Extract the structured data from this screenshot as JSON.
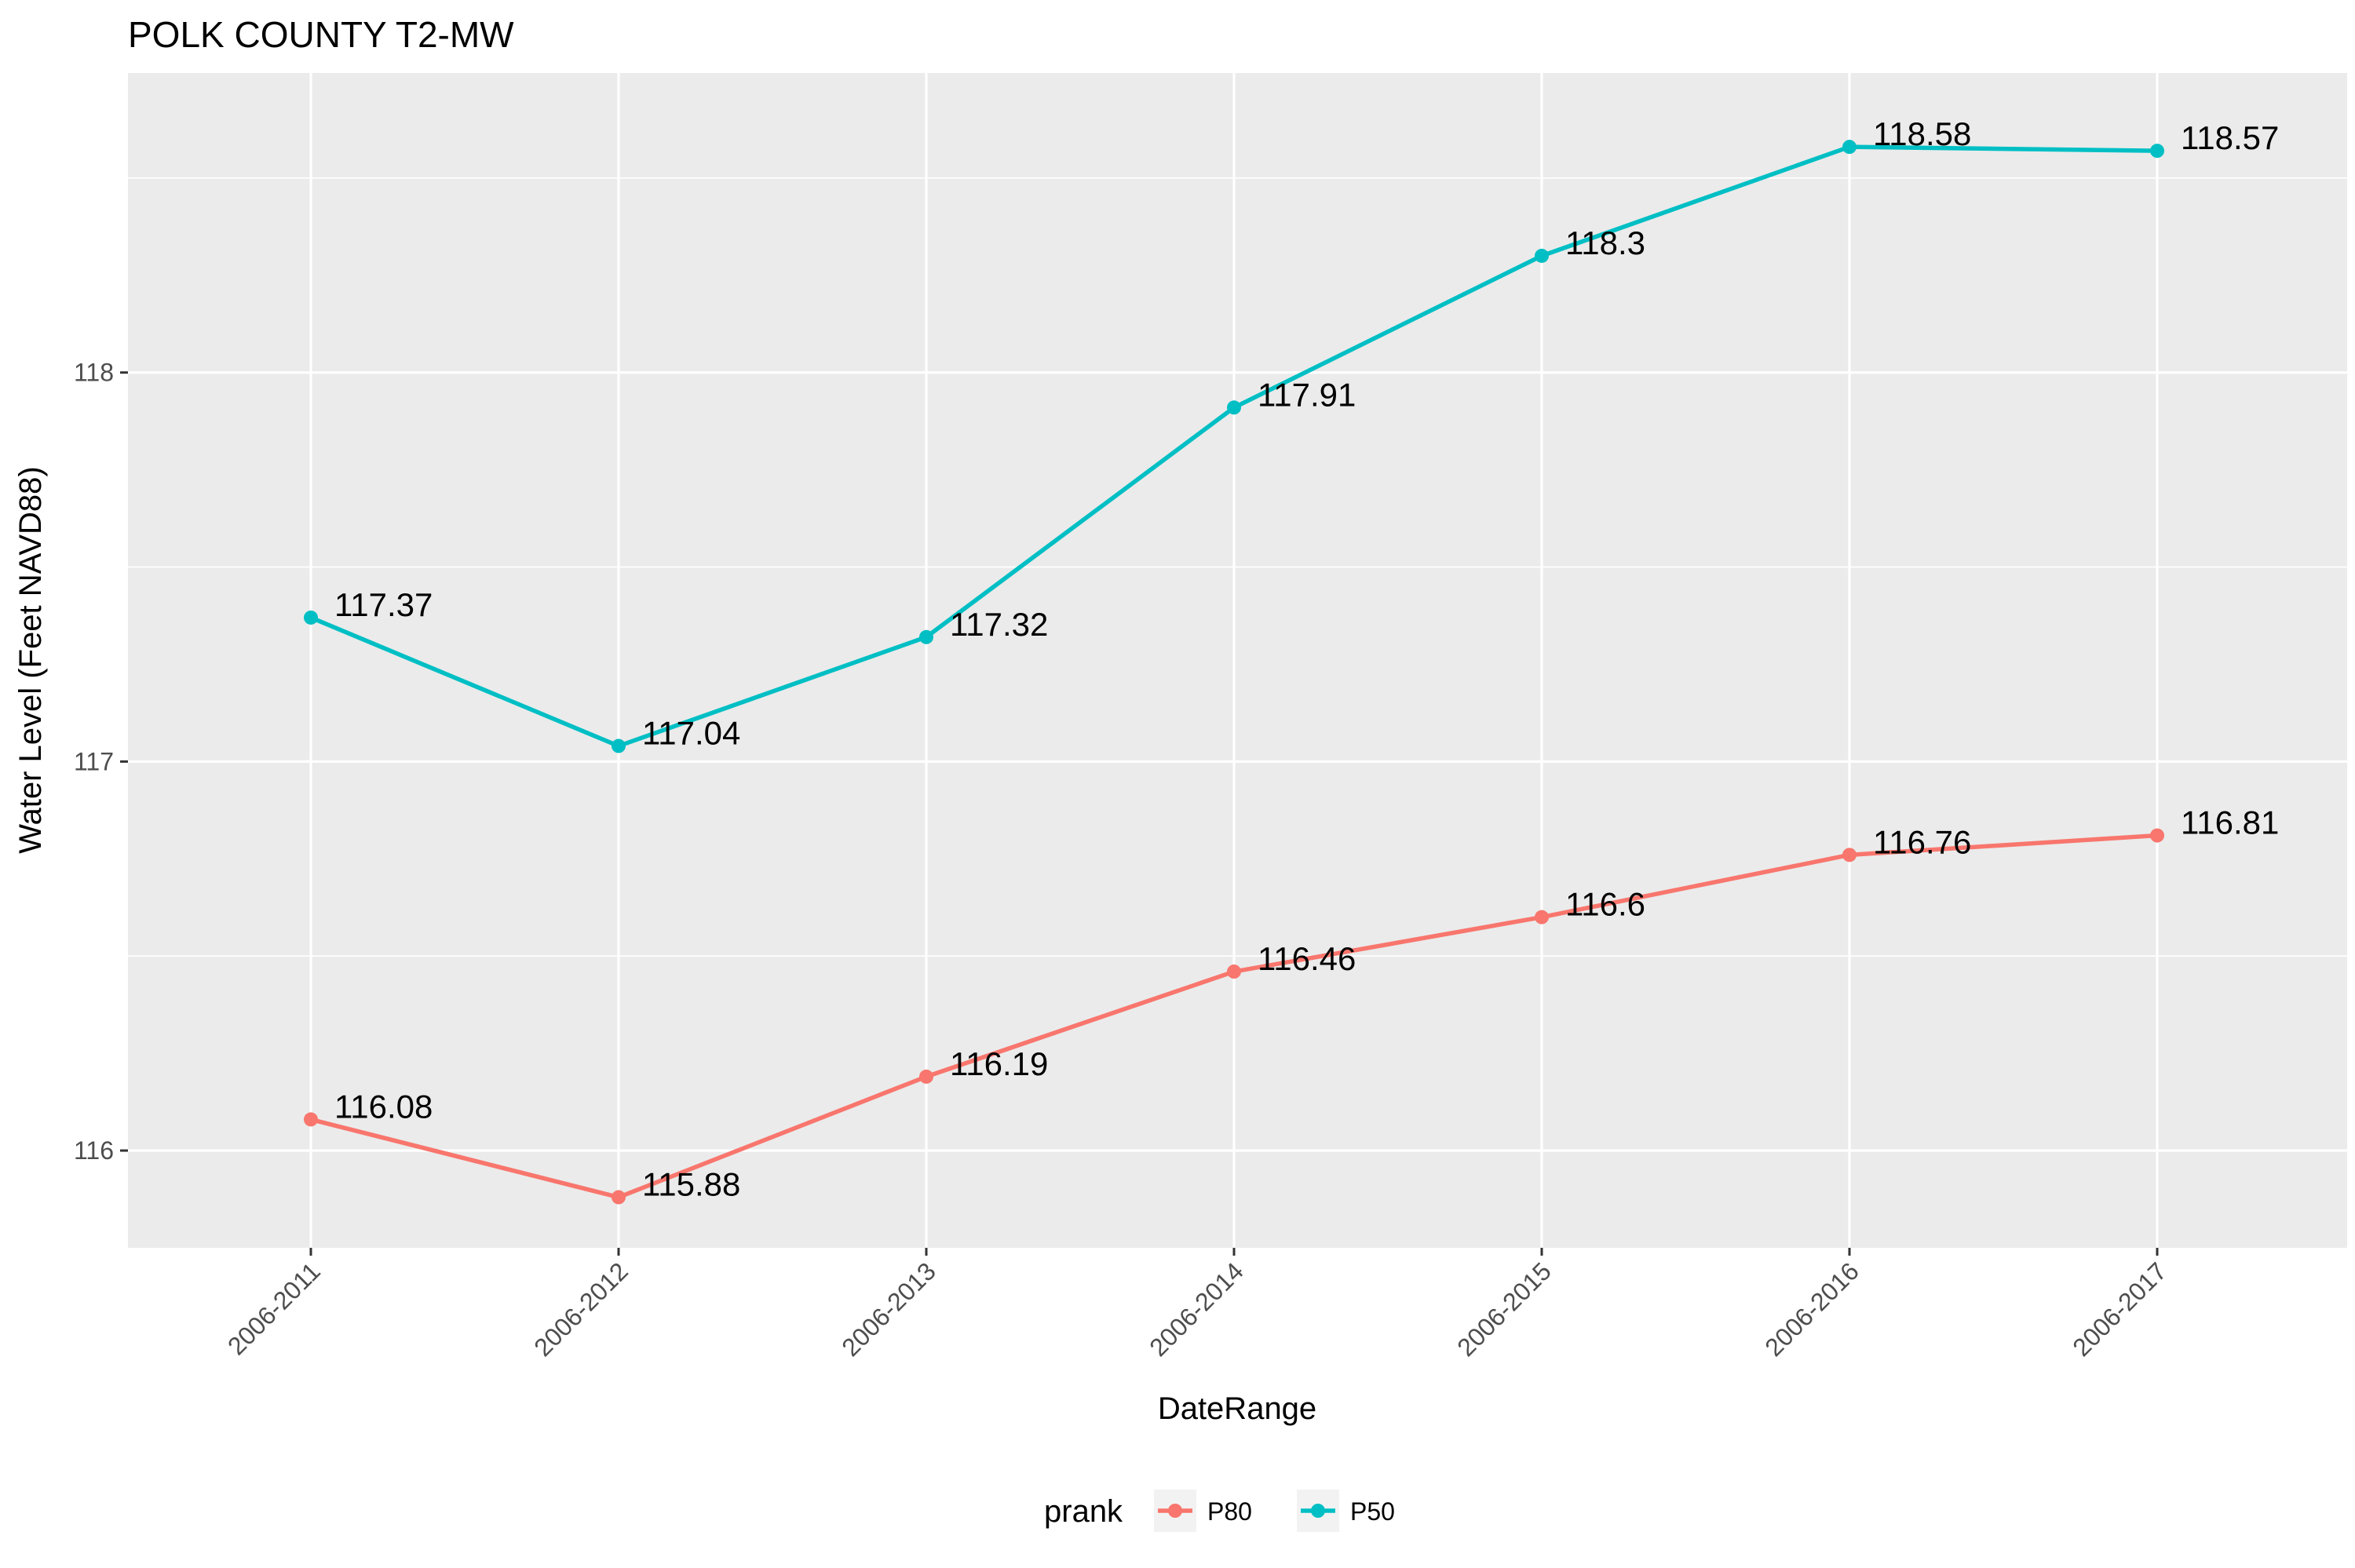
{
  "chart_data": {
    "type": "line",
    "title": "POLK COUNTY T2-MW",
    "xlabel": "DateRange",
    "ylabel": "Water Level (Feet NAVD88)",
    "categories": [
      "2006-2011",
      "2006-2012",
      "2006-2013",
      "2006-2014",
      "2006-2015",
      "2006-2016",
      "2006-2017"
    ],
    "ylim": [
      115.75,
      118.77
    ],
    "y_ticks": [
      116,
      117,
      118
    ],
    "grid": true,
    "legend": {
      "title": "prank",
      "position": "bottom"
    },
    "series": [
      {
        "name": "P80",
        "color": "#F8766D",
        "values": [
          116.08,
          115.88,
          116.19,
          116.46,
          116.6,
          116.76,
          116.81
        ],
        "labels": [
          "116.08",
          "115.88",
          "116.19",
          "116.46",
          "116.6",
          "116.76",
          "116.81"
        ]
      },
      {
        "name": "P50",
        "color": "#00BFC4",
        "values": [
          117.37,
          117.04,
          117.32,
          117.91,
          118.3,
          118.58,
          118.57
        ],
        "labels": [
          "117.37",
          "117.04",
          "117.32",
          "117.91",
          "118.3",
          "118.58",
          "118.57"
        ]
      }
    ]
  }
}
